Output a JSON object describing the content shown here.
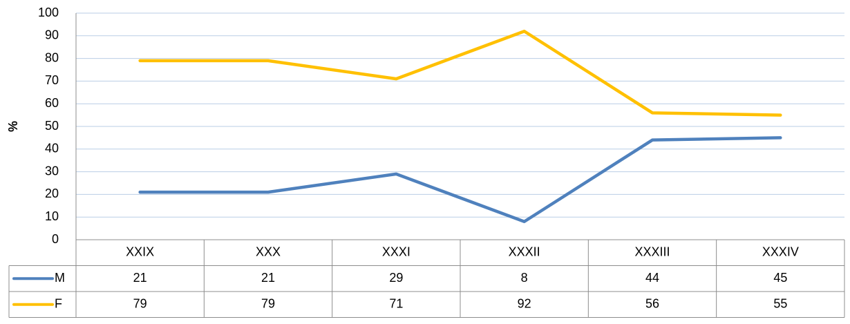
{
  "chart_data": {
    "type": "line",
    "ylabel": "%",
    "categories": [
      "XXIX",
      "XXX",
      "XXXI",
      "XXXII",
      "XXXIII",
      "XXXIV"
    ],
    "series": [
      {
        "name": "M",
        "color": "#4f81bd",
        "values": [
          21,
          21,
          29,
          8,
          44,
          45
        ]
      },
      {
        "name": "F",
        "color": "#ffc000",
        "values": [
          79,
          79,
          71,
          92,
          56,
          55
        ]
      }
    ],
    "ylim": [
      0,
      100
    ],
    "yticks": [
      0,
      10,
      20,
      30,
      40,
      50,
      60,
      70,
      80,
      90,
      100
    ],
    "grid": true,
    "data_table": true
  }
}
